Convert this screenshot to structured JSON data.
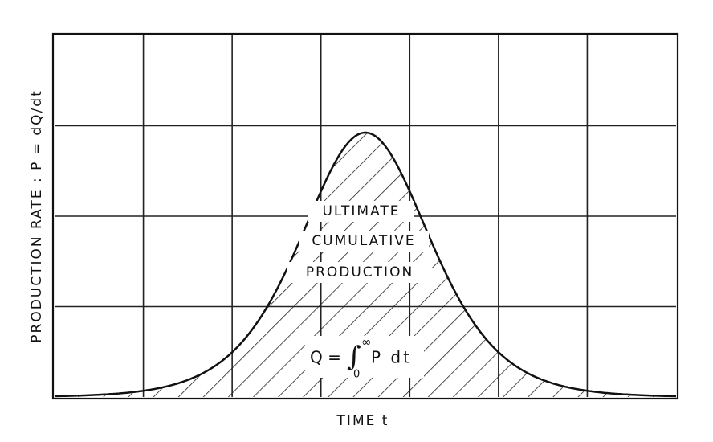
{
  "axes": {
    "y_label": "PRODUCTION RATE : P = dQ/dt",
    "x_label": "TIME t"
  },
  "area_label": {
    "lines": [
      "ULTIMATE",
      "CUMULATIVE",
      "PRODUCTION"
    ]
  },
  "formula": {
    "lhs": "Q =",
    "integral": "∫",
    "upper": "∞",
    "lower": "0",
    "integrand": "P dt"
  }
}
